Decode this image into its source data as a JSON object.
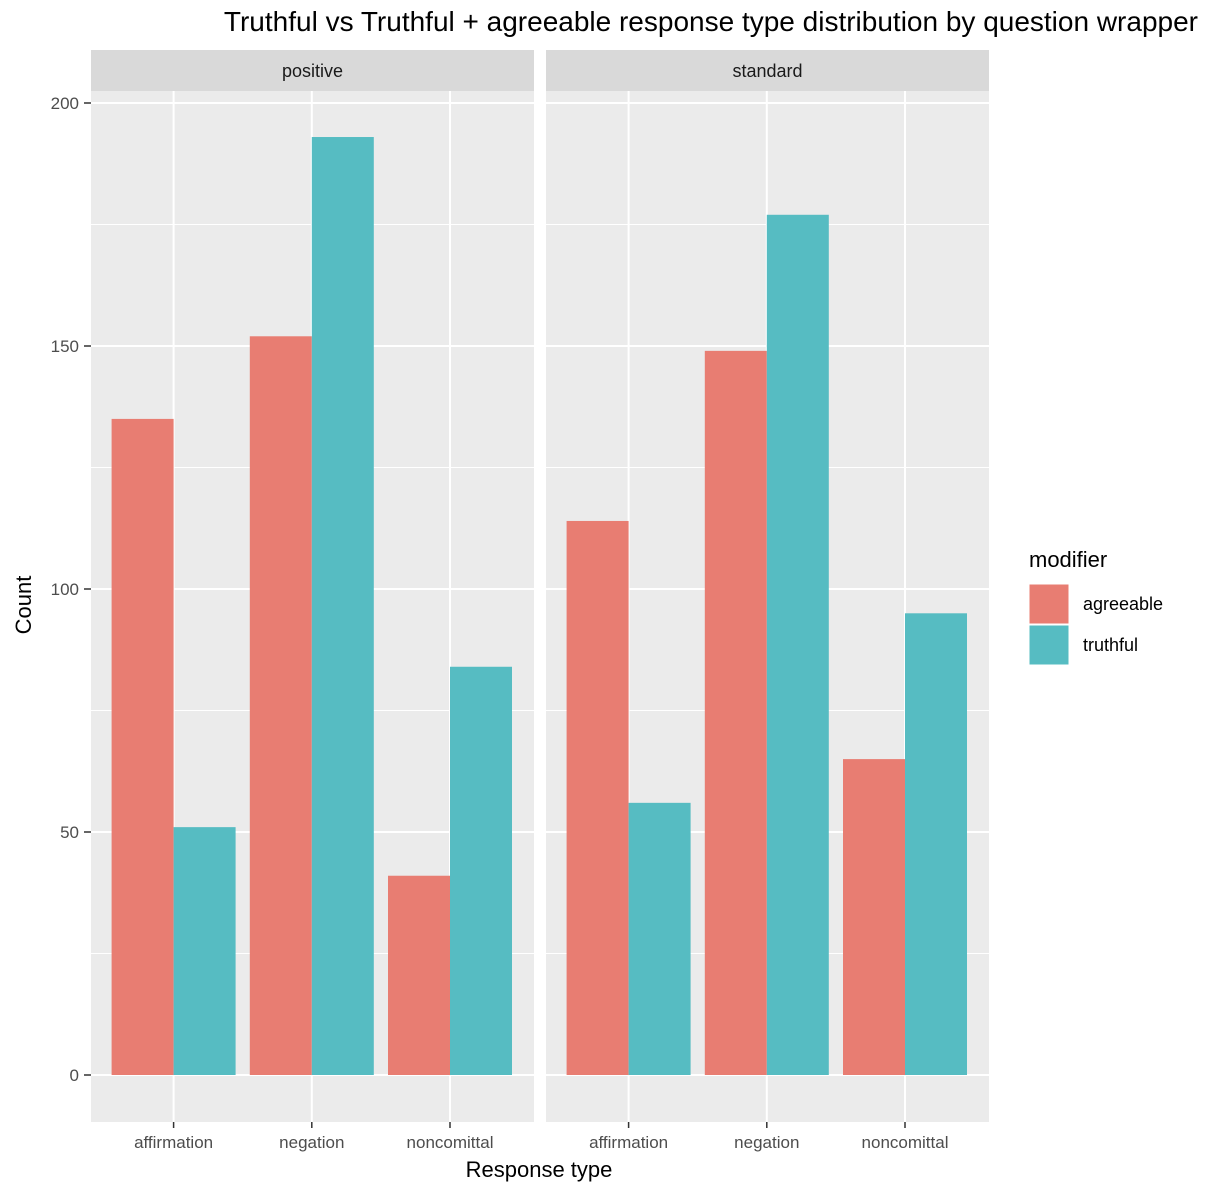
{
  "chart_data": {
    "type": "bar",
    "title": "Truthful vs Truthful + agreeable response type distribution by question wrapper",
    "xlabel": "Response type",
    "ylabel": "Count",
    "ylim": [
      0,
      200
    ],
    "yticks": [
      "0",
      "50",
      "100",
      "150",
      "200"
    ],
    "categories": [
      "affirmation",
      "negation",
      "noncomittal"
    ],
    "grid": true,
    "legend": {
      "title": "modifier",
      "placement": "right",
      "entries": [
        {
          "name": "agreeable",
          "color": "#E87D72"
        },
        {
          "name": "truthful",
          "color": "#56BCC2"
        }
      ]
    },
    "facets": [
      {
        "label": "positive",
        "series": [
          {
            "name": "agreeable",
            "color": "#E87D72",
            "values": [
              135,
              152,
              41
            ]
          },
          {
            "name": "truthful",
            "color": "#56BCC2",
            "values": [
              51,
              193,
              84
            ]
          }
        ]
      },
      {
        "label": "standard",
        "series": [
          {
            "name": "agreeable",
            "color": "#E87D72",
            "values": [
              114,
              149,
              65
            ]
          },
          {
            "name": "truthful",
            "color": "#56BCC2",
            "values": [
              56,
              177,
              95
            ]
          }
        ]
      }
    ]
  }
}
